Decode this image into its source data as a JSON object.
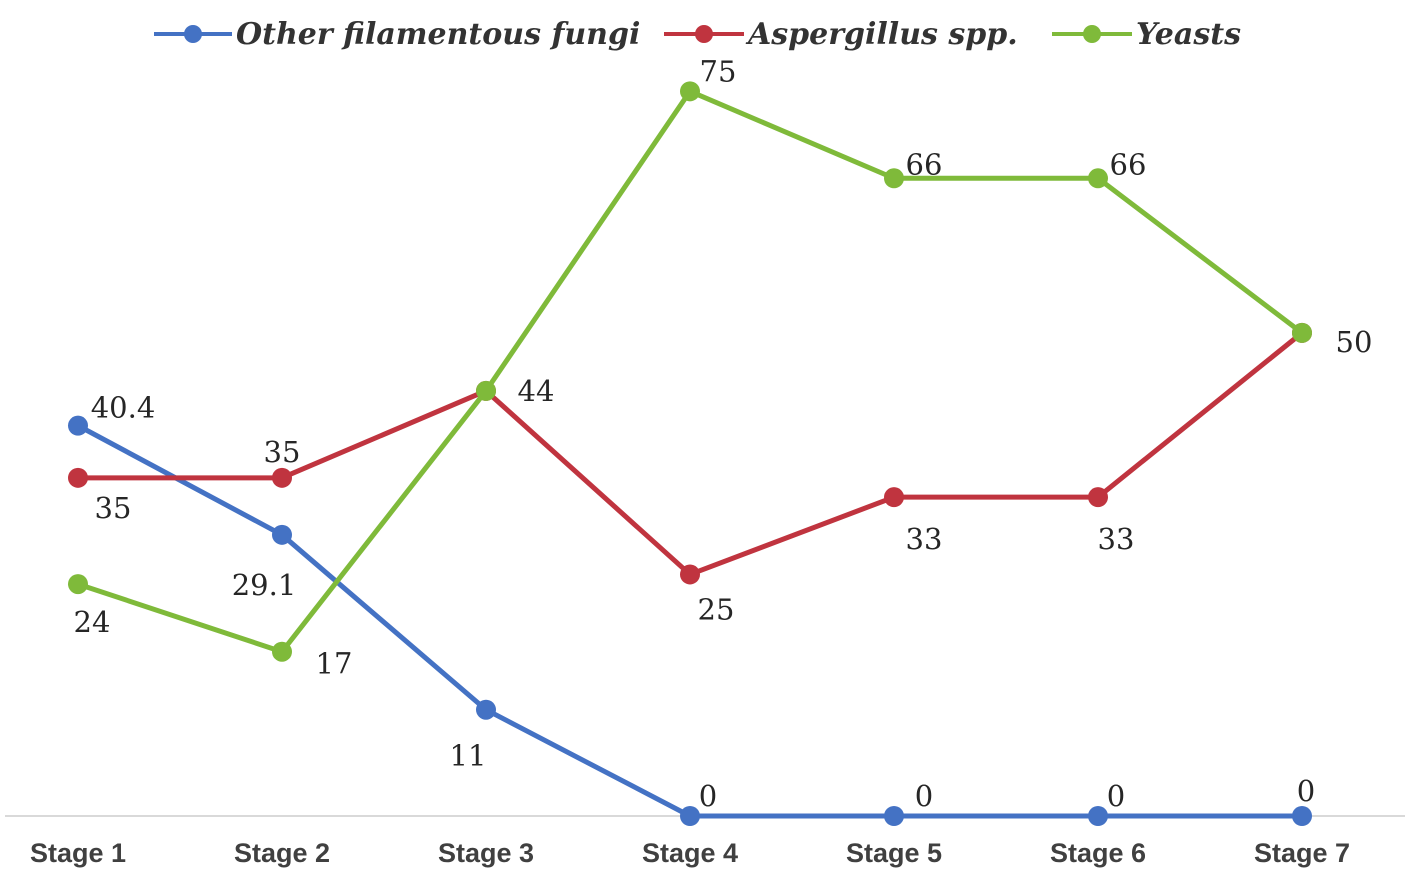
{
  "chart_data": {
    "type": "line",
    "categories": [
      "Stage 1",
      "Stage 2",
      "Stage 3",
      "Stage 4",
      "Stage 5",
      "Stage 6",
      "Stage 7"
    ],
    "series": [
      {
        "name": "Other filamentous  fungi",
        "color": "#4472c4",
        "values": [
          40.4,
          29.1,
          11,
          0,
          0,
          0,
          0
        ],
        "labels": [
          "40.4",
          "29.1",
          "11",
          "0",
          "0",
          "0",
          "0"
        ]
      },
      {
        "name": "Aspergillus spp.",
        "color": "#c0343f",
        "values": [
          35,
          35,
          44,
          25,
          33,
          33,
          50
        ],
        "labels": [
          "35",
          "35",
          "",
          "25",
          "33",
          "33",
          ""
        ]
      },
      {
        "name": "Yeasts",
        "color": "#7fba3a",
        "values": [
          24,
          17,
          44,
          75,
          66,
          66,
          50
        ],
        "labels": [
          "24",
          "17",
          "44",
          "75",
          "66",
          "66",
          "50"
        ]
      }
    ],
    "ylim": [
      0,
      80
    ],
    "grid": false,
    "legend_position": "top",
    "title": "",
    "xlabel": "",
    "ylabel": ""
  }
}
